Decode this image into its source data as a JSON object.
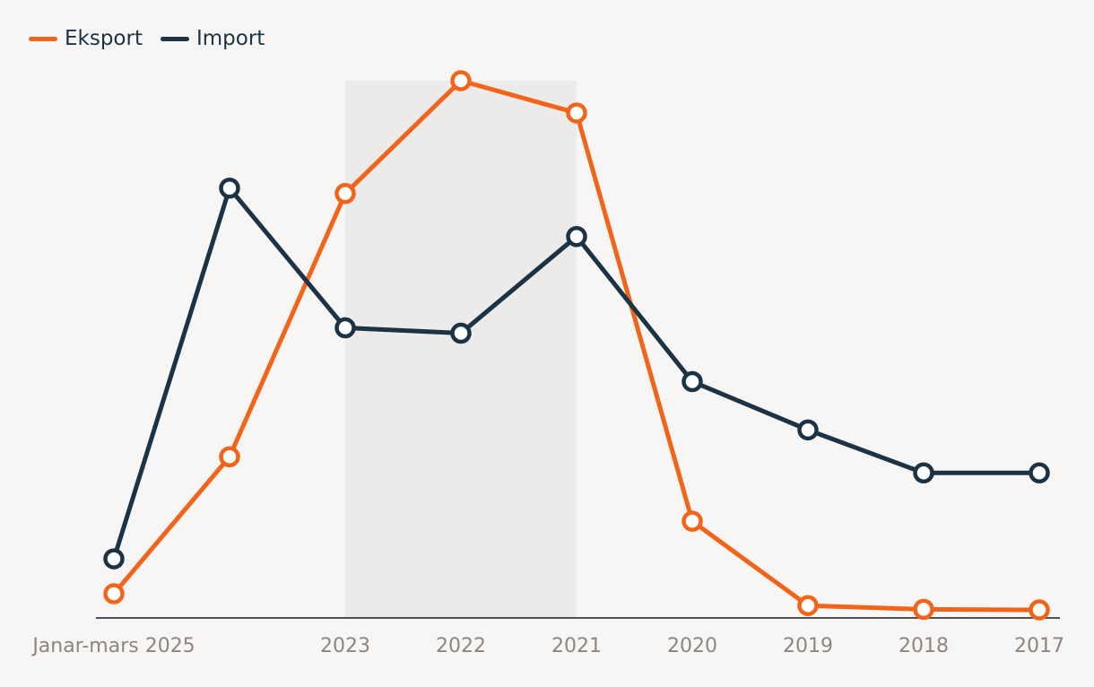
{
  "chart_data": {
    "type": "line",
    "categories": [
      "Janar-mars 2025",
      "",
      "2023",
      "2022",
      "2021",
      "2020",
      "2019",
      "2018",
      "2017"
    ],
    "series": [
      {
        "name": "Eksport",
        "color": "#f26419",
        "values": [
          4.5,
          30,
          79,
          100,
          94,
          18,
          2.3,
          1.6,
          1.5
        ]
      },
      {
        "name": "Import",
        "color": "#1c3345",
        "values": [
          11,
          80,
          54,
          53,
          71,
          44,
          35,
          27,
          27
        ]
      }
    ],
    "highlight_band": {
      "from": "2023",
      "to": "2021",
      "color": "#ecebea"
    },
    "ylim": [
      0,
      100
    ],
    "legend_position": "top-left",
    "grid": false
  }
}
